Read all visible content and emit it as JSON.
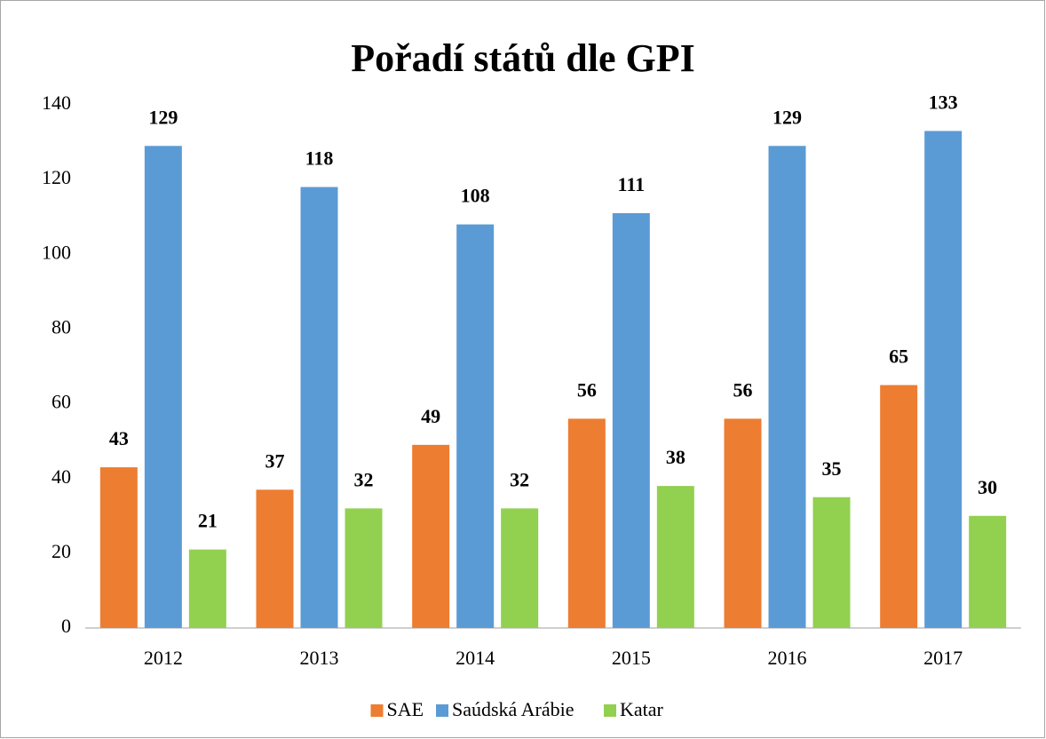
{
  "chart_data": {
    "type": "bar",
    "title": "Pořadí států dle GPI",
    "categories": [
      "2012",
      "2013",
      "2014",
      "2015",
      "2016",
      "2017"
    ],
    "series": [
      {
        "name": "SAE",
        "color": "#ed7d31",
        "values": [
          43,
          37,
          49,
          56,
          56,
          65
        ]
      },
      {
        "name": "Saúdská Arábie",
        "color": "#5b9bd5",
        "values": [
          129,
          118,
          108,
          111,
          129,
          133
        ]
      },
      {
        "name": "Katar",
        "color": "#92d050",
        "values": [
          21,
          32,
          32,
          38,
          35,
          30
        ]
      }
    ],
    "ylim": [
      0,
      140
    ],
    "yticks": [
      0,
      20,
      40,
      60,
      80,
      100,
      120,
      140
    ],
    "grid": false,
    "legend": "bottom"
  }
}
